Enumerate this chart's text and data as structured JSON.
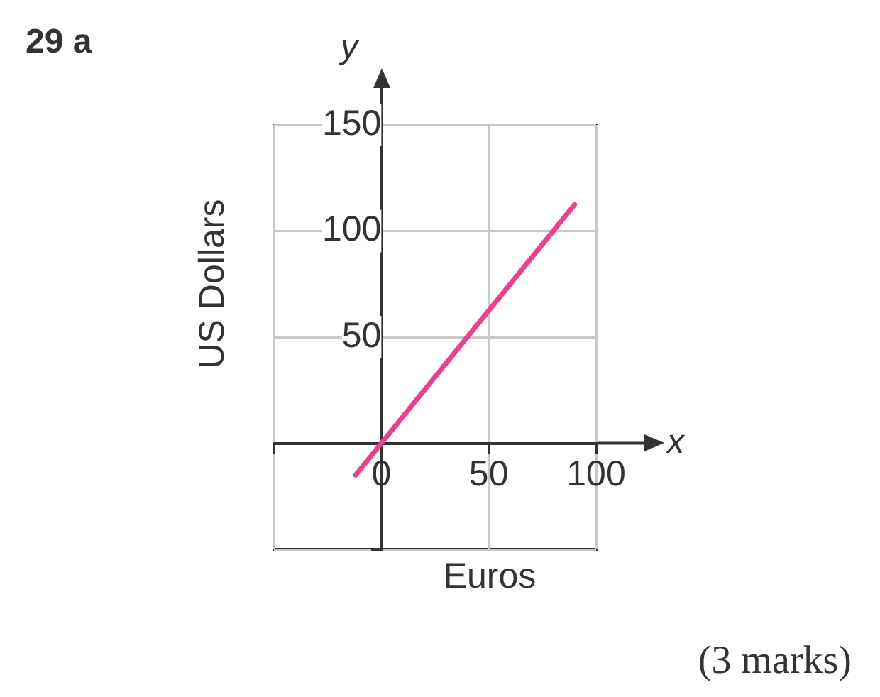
{
  "chart_data": {
    "type": "line",
    "xlabel": "Euros",
    "ylabel": "US Dollars",
    "annotations": [
      "29 a",
      "(3 marks)",
      "x",
      "y"
    ],
    "series": [
      {
        "x": [
          -12,
          90
        ],
        "values": [
          -15,
          112.5
        ],
        "color": "#e8418e"
      }
    ],
    "xlim": [
      -50,
      100
    ],
    "ylim": [
      -50,
      150
    ],
    "xticks": [
      {
        "value": -50,
        "label": null
      },
      {
        "value": 0,
        "label": "0"
      },
      50,
      100
    ],
    "yticks": [
      {
        "value": -50,
        "label": null
      },
      {
        "value": 0,
        "label": null
      },
      50,
      100,
      150
    ],
    "grid": true,
    "legend": false,
    "marker": "none",
    "line_style": "solid"
  }
}
